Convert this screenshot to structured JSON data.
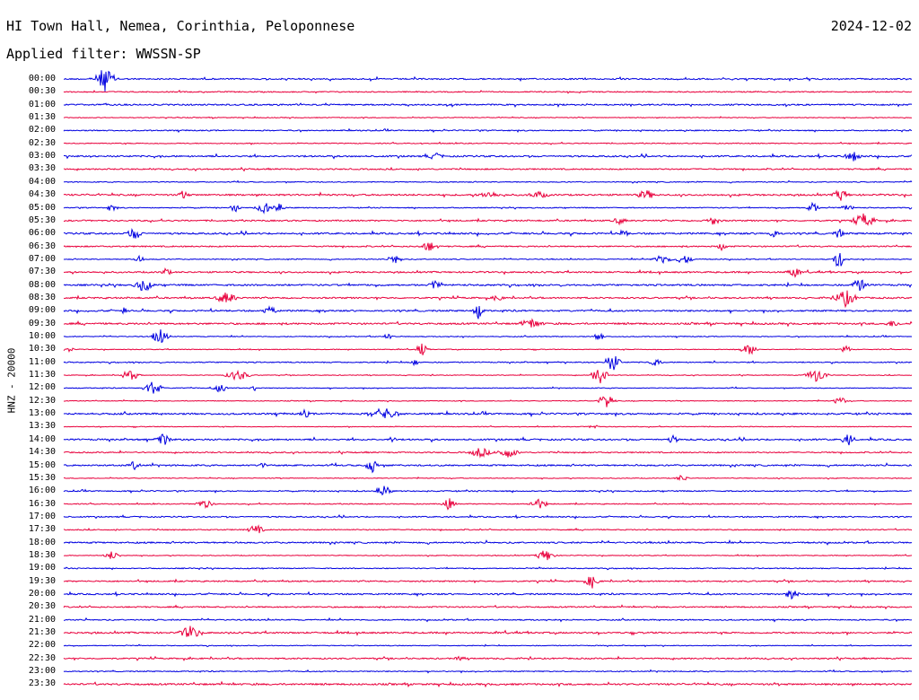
{
  "header": {
    "station": "HI Town Hall, Nemea, Corinthia, Peloponnese",
    "date": "2024-12-02",
    "filter_text": "Applied filter: WWSSN-SP"
  },
  "channel_label": "HNZ - 20000",
  "colors": {
    "even_trace": "#0000e0",
    "odd_trace": "#e8003c",
    "background": "#ffffff",
    "text": "#000000"
  },
  "time_labels": [
    "00:00",
    "00:30",
    "01:00",
    "01:30",
    "02:00",
    "02:30",
    "03:00",
    "03:30",
    "04:00",
    "04:30",
    "05:00",
    "05:30",
    "06:00",
    "06:30",
    "07:00",
    "07:30",
    "08:00",
    "08:30",
    "09:00",
    "09:30",
    "10:00",
    "10:30",
    "11:00",
    "11:30",
    "12:00",
    "12:30",
    "13:00",
    "13:30",
    "14:00",
    "14:30",
    "15:00",
    "15:30",
    "16:00",
    "16:30",
    "17:00",
    "17:30",
    "18:00",
    "18:30",
    "19:00",
    "19:30",
    "20:00",
    "20:30",
    "21:00",
    "21:30",
    "22:00",
    "22:30",
    "23:00",
    "23:30"
  ]
}
